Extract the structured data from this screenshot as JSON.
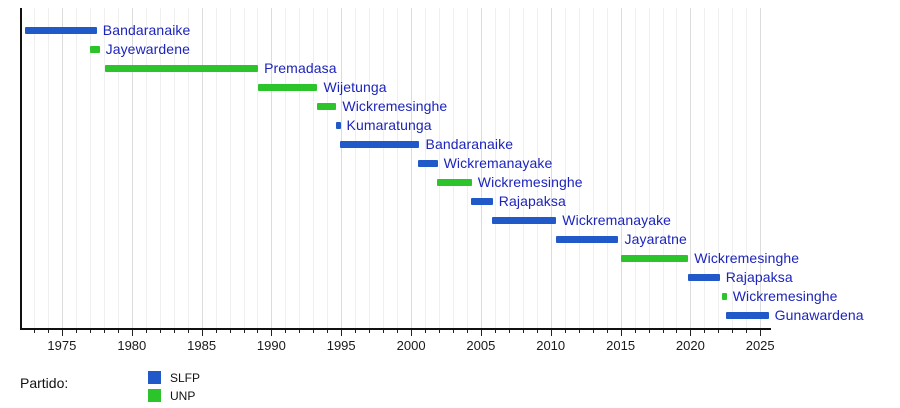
{
  "chart_data": {
    "type": "gantt",
    "title": "",
    "x_axis": {
      "min": 1972.07,
      "max": 2025.7,
      "major_ticks": [
        1975,
        1980,
        1985,
        1990,
        1995,
        2000,
        2005,
        2010,
        2015,
        2020,
        2025
      ],
      "minor_tick_step": 1,
      "grid": true
    },
    "bars": [
      {
        "label": "Bandaranaike",
        "party": "SLFP",
        "start": 1972.35,
        "end": 1977.5
      },
      {
        "label": "Jayewardene",
        "party": "UNP",
        "start": 1977.0,
        "end": 1977.7
      },
      {
        "label": "Premadasa",
        "party": "UNP",
        "start": 1978.1,
        "end": 1989.05
      },
      {
        "label": "Wijetunga",
        "party": "UNP",
        "start": 1989.05,
        "end": 1993.3
      },
      {
        "label": "Wickremesinghe",
        "party": "UNP",
        "start": 1993.25,
        "end": 1994.65
      },
      {
        "label": "Kumaratunga",
        "party": "SLFP",
        "start": 1994.6,
        "end": 1994.95
      },
      {
        "label": "Bandaranaike",
        "party": "SLFP",
        "start": 1994.9,
        "end": 2000.6
      },
      {
        "label": "Wickremanayake",
        "party": "SLFP",
        "start": 2000.5,
        "end": 2001.9
      },
      {
        "label": "Wickremesinghe",
        "party": "UNP",
        "start": 2001.85,
        "end": 2004.35
      },
      {
        "label": "Rajapaksa",
        "party": "SLFP",
        "start": 2004.3,
        "end": 2005.85
      },
      {
        "label": "Wickremanayake",
        "party": "SLFP",
        "start": 2005.8,
        "end": 2010.4
      },
      {
        "label": "Jayaratne",
        "party": "SLFP",
        "start": 2010.35,
        "end": 2014.85
      },
      {
        "label": "Wickremesinghe",
        "party": "UNP",
        "start": 2015.0,
        "end": 2019.85
      },
      {
        "label": "Rajapaksa",
        "party": "SLFP",
        "start": 2019.8,
        "end": 2022.1
      },
      {
        "label": "Wickremesinghe",
        "party": "UNP",
        "start": 2022.25,
        "end": 2022.6
      },
      {
        "label": "Gunawardena",
        "party": "SLFP",
        "start": 2022.55,
        "end": 2025.6
      }
    ],
    "party_colors": {
      "SLFP": "#2159c8",
      "UNP": "#2bc52b"
    },
    "label_color": "#1c24bb",
    "grid_colors": {
      "minor": "#efefef",
      "major": "#dcdcdc"
    },
    "legend": {
      "title": "Partido:",
      "entries": [
        {
          "label": "SLFP",
          "color": "#2159c8"
        },
        {
          "label": "UNP",
          "color": "#2bc52b"
        }
      ]
    }
  }
}
